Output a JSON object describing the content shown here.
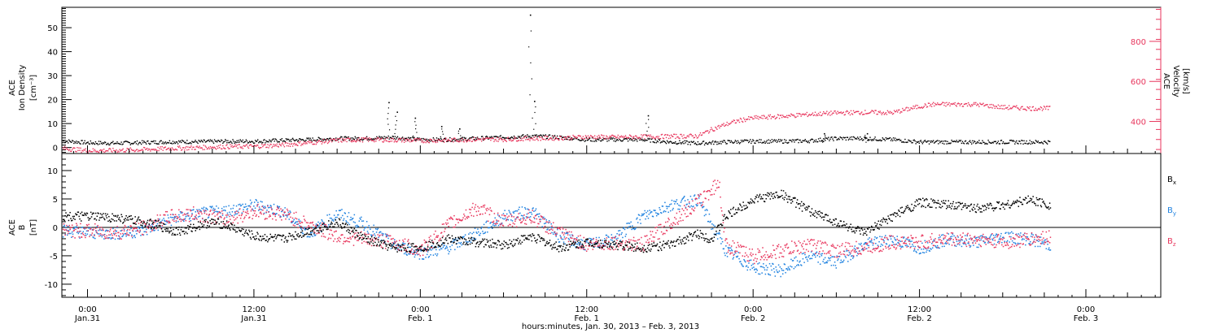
{
  "colors": {
    "axis": "#000000",
    "density": "#000000",
    "velocity": "#e8365d",
    "bx": "#000000",
    "by": "#1f82e0",
    "bz": "#e8365d"
  },
  "top_panel": {
    "left_label_lines": [
      "ACE",
      "Ion Density",
      "[cm⁻³]"
    ],
    "right_label_lines": [
      "ACE",
      "Velocity",
      "[km/s]"
    ]
  },
  "bottom_panel": {
    "left_label_lines": [
      "ACE",
      "B",
      "[nT]"
    ],
    "legend": [
      {
        "text": "B",
        "sub": "x",
        "color": "#000000"
      },
      {
        "text": "B",
        "sub": "y",
        "color": "#1f82e0"
      },
      {
        "text": "B",
        "sub": "z",
        "color": "#e8365d"
      }
    ]
  },
  "x_axis": {
    "title": "hours:minutes, Jan. 30, 2013 – Feb. 3, 2013",
    "ticks": [
      {
        "h": 24,
        "time": "0:00",
        "date": "Jan.31"
      },
      {
        "h": 36,
        "time": "12:00",
        "date": "Jan.31"
      },
      {
        "h": 48,
        "time": "0:00",
        "date": "Feb. 1"
      },
      {
        "h": 60,
        "time": "12:00",
        "date": "Feb. 1"
      },
      {
        "h": 72,
        "time": "0:00",
        "date": "Feb. 2"
      },
      {
        "h": 84,
        "time": "12:00",
        "date": "Feb. 2"
      },
      {
        "h": 96,
        "time": "0:00",
        "date": "Feb. 3"
      }
    ],
    "xlim_hours": [
      22.15,
      101.4
    ]
  },
  "chart_data": [
    {
      "type": "scatter",
      "panel": "top",
      "ylabel": "ACE Ion Density [cm⁻³]",
      "y2label": "ACE Velocity [km/s]",
      "ylim": [
        -2.5,
        58.5
      ],
      "y2lim": [
        240,
        970
      ],
      "y_ticks": [
        0,
        10,
        20,
        30,
        40,
        50
      ],
      "y2_ticks": [
        400,
        600,
        800
      ],
      "series": [
        {
          "name": "Ion Density",
          "axis": "left",
          "color": "#000000",
          "x": [
            22.2,
            24,
            26,
            28,
            30,
            32,
            34,
            36,
            37,
            38,
            40,
            42,
            44,
            46,
            48,
            50,
            52,
            54,
            56,
            58,
            60,
            62,
            64,
            66,
            68,
            70,
            72,
            74,
            76,
            78,
            80,
            82,
            84,
            86,
            88,
            90,
            92,
            93.4
          ],
          "y": [
            3.0,
            2.2,
            2.0,
            2.3,
            2.6,
            2.6,
            2.8,
            2.8,
            3.0,
            3.2,
            3.5,
            4.0,
            4.0,
            4.5,
            3.5,
            3.5,
            4.0,
            4.5,
            5.0,
            4.5,
            3.5,
            3.5,
            3.5,
            2.5,
            2.0,
            2.5,
            2.8,
            2.8,
            3.0,
            4.0,
            4.0,
            3.5,
            2.5,
            2.5,
            2.5,
            2.5,
            2.5,
            2.5
          ]
        },
        {
          "name": "Velocity",
          "axis": "right",
          "color": "#e8365d",
          "x": [
            22.2,
            24,
            26,
            28,
            30,
            32,
            34,
            36,
            38,
            40,
            42,
            44,
            46,
            48,
            50,
            52,
            54,
            56,
            58,
            60,
            62,
            64,
            66,
            68,
            69,
            70,
            71,
            72,
            74,
            76,
            78,
            80,
            82,
            84,
            85,
            86,
            88,
            90,
            92,
            93.4
          ],
          "y": [
            268,
            257,
            258,
            262,
            268,
            272,
            277,
            278,
            285,
            297,
            308,
            312,
            310,
            307,
            309,
            313,
            313,
            318,
            320,
            326,
            324,
            326,
            328,
            330,
            363,
            388,
            408,
            420,
            428,
            438,
            445,
            448,
            446,
            478,
            488,
            488,
            488,
            473,
            468,
            468
          ]
        },
        {
          "name": "Ion Density spikes",
          "axis": "left",
          "color": "#000000",
          "x": [
            45.7,
            46.3,
            47.6,
            49.5,
            50.8,
            55.9,
            56.2,
            64.4,
            77.1,
            80.2
          ],
          "y": [
            19,
            15,
            12.5,
            9,
            8,
            55.5,
            19.5,
            13.5,
            6,
            6
          ]
        }
      ]
    },
    {
      "type": "scatter",
      "panel": "bottom",
      "ylabel": "ACE B [nT]",
      "ylim": [
        -12.3,
        13.0
      ],
      "y_ticks": [
        -10,
        -5,
        0,
        5,
        10
      ],
      "series": [
        {
          "name": "Bx",
          "color": "#000000",
          "x": [
            22.2,
            24,
            26,
            28,
            29,
            30,
            31,
            32,
            33,
            34,
            36,
            38,
            40,
            42,
            44,
            46,
            48,
            50,
            52,
            54,
            56,
            58,
            60,
            62,
            64,
            66,
            68,
            69,
            70,
            72,
            74,
            76,
            78,
            80,
            82,
            84,
            86,
            88,
            90,
            92,
            93.4
          ],
          "y": [
            2,
            2,
            1.8,
            1.0,
            0.5,
            -0.5,
            -0.5,
            0.5,
            1.0,
            0.5,
            -1.5,
            -2.0,
            -0.5,
            1.0,
            -2.0,
            -3.5,
            -3.5,
            -2.0,
            -2.5,
            -3.0,
            -1.5,
            -3.5,
            -2.5,
            -3.0,
            -3.5,
            -3.0,
            -1.0,
            -2.0,
            2.0,
            5.0,
            6.0,
            3.0,
            1.0,
            -1.0,
            2.0,
            4.5,
            4.0,
            3.5,
            4.0,
            5.0,
            4.0
          ]
        },
        {
          "name": "By",
          "color": "#1f82e0",
          "x": [
            22.2,
            24,
            26,
            28,
            30,
            32,
            34,
            36,
            38,
            40,
            42,
            44,
            46,
            48,
            50,
            52,
            54,
            56,
            58,
            60,
            62,
            64,
            66,
            68,
            70,
            72,
            74,
            76,
            78,
            80,
            82,
            84,
            86,
            88,
            90,
            92,
            93.4
          ],
          "y": [
            -0.5,
            -0.8,
            -1.0,
            -0.5,
            1.5,
            2.5,
            3.0,
            4.0,
            3.0,
            -1.0,
            2.5,
            0.5,
            -3.0,
            -4.5,
            -3.5,
            -1.0,
            2.0,
            3.0,
            -1.5,
            -3.0,
            -2.0,
            2.0,
            4.0,
            5.0,
            -4.0,
            -7.0,
            -7.5,
            -5.0,
            -6.0,
            -3.0,
            -2.0,
            -3.5,
            -2.0,
            -2.5,
            -1.5,
            -2.0,
            -3.0
          ]
        },
        {
          "name": "Bz",
          "color": "#e8365d",
          "x": [
            22.2,
            24,
            26,
            28,
            30,
            32,
            34,
            36,
            38,
            40,
            42,
            44,
            46,
            48,
            50,
            52,
            54,
            56,
            58,
            60,
            62,
            64,
            66,
            68,
            69.5,
            70,
            72,
            74,
            76,
            78,
            80,
            82,
            84,
            86,
            88,
            90,
            92,
            93.4
          ],
          "y": [
            -0.5,
            -0.5,
            -0.8,
            0.0,
            2.0,
            2.5,
            1.5,
            3.0,
            2.5,
            0.5,
            -1.5,
            -2.0,
            -2.5,
            -4.0,
            0.5,
            3.5,
            1.0,
            2.0,
            -1.0,
            -3.0,
            -2.5,
            -3.0,
            1.0,
            4.5,
            8.0,
            -3.0,
            -5.0,
            -4.0,
            -3.0,
            -4.0,
            -3.5,
            -2.5,
            -2.5,
            -2.0,
            -2.0,
            -2.5,
            -2.0,
            -1.5
          ]
        }
      ]
    }
  ]
}
